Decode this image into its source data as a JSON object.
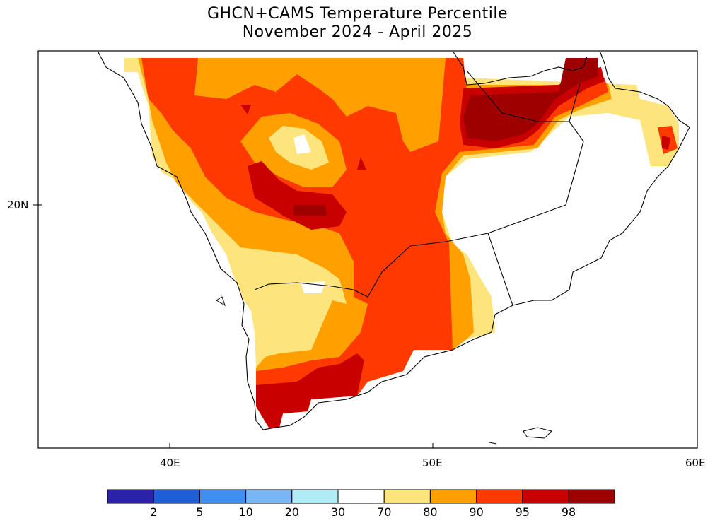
{
  "title": {
    "line1": "GHCN+CAMS Temperature Percentile",
    "line2": "November 2024 - April 2025"
  },
  "axes": {
    "x_ticks": [
      "40E",
      "50E",
      "60E"
    ],
    "y_ticks": [
      "20N"
    ]
  },
  "colorbar": {
    "labels": [
      "2",
      "5",
      "10",
      "20",
      "30",
      "70",
      "80",
      "90",
      "95",
      "98"
    ],
    "colors": [
      "#2a22a8",
      "#1f5fd6",
      "#3f8ff0",
      "#78b6f6",
      "#b0ecf6",
      "#ffffff",
      "#fee47c",
      "#ffa000",
      "#ff3a00",
      "#c80000",
      "#9e0000"
    ]
  },
  "palette": {
    "p70_80": "#fee47c",
    "p80_90": "#ffa000",
    "p90_95": "#ff3a00",
    "p95_98": "#c80000",
    "p98_100": "#9e0000"
  }
}
